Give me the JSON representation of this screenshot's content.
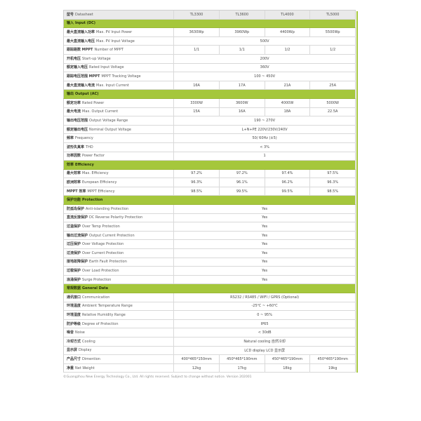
{
  "accent_color": "#a5c73c",
  "header": {
    "zh": "型号",
    "en": "Datasheet",
    "models": [
      "TL3300",
      "TL3600",
      "TL4000",
      "TL5000"
    ]
  },
  "sections": [
    {
      "zh": "输入",
      "en": "Input (DC)",
      "rows": [
        {
          "zh": "最大直流输入功率",
          "en": "Max. PV Input Power",
          "values": [
            "3630Wp",
            "3960Wp",
            "4400Wp",
            "5500Wp"
          ]
        },
        {
          "zh": "最大直流输入电压",
          "en": "Max. PV Input Voltage",
          "value": "500V"
        },
        {
          "zh": "跟踪路数 MPPT",
          "en": "Number of MPPT",
          "values": [
            "1/1",
            "1/1",
            "1/2",
            "1/2"
          ]
        },
        {
          "zh": "开机电压",
          "en": "Start-up Voltage",
          "value": "200V"
        },
        {
          "zh": "额定输入电压",
          "en": "Rated Input Voltage",
          "value": "360V"
        },
        {
          "zh": "跟踪电压范围 MPPT",
          "en": "MPPT Tracking Voltage",
          "value": "100 ~ 450V"
        },
        {
          "zh": "最大直流输入电流",
          "en": "Max. Input Current",
          "values": [
            "16A",
            "17A",
            "21A",
            "25A"
          ]
        }
      ]
    },
    {
      "zh": "输出",
      "en": "Output (AC)",
      "rows": [
        {
          "zh": "额定功率",
          "en": "Rated Power",
          "values": [
            "3300W",
            "3600W",
            "4000W",
            "5000W"
          ]
        },
        {
          "zh": "最大电流",
          "en": "Max. Output Current",
          "values": [
            "15A",
            "16A",
            "18A",
            "22.5A"
          ]
        },
        {
          "zh": "输出电压范围",
          "en": "Output Voltage Range",
          "value": "190 ~ 270V"
        },
        {
          "zh": "额定输出电压",
          "en": "Nominal Output Voltage",
          "value": "L+N+PE 220V/230V/240V"
        },
        {
          "zh": "频率",
          "en": "Frequency",
          "value": "50/ 60Hz (±5)"
        },
        {
          "zh": "波形失真率",
          "en": "THD",
          "value": "< 3%"
        },
        {
          "zh": "功率因数",
          "en": "Power Factor",
          "value": "1"
        }
      ]
    },
    {
      "zh": "效率",
      "en": "Efficiency",
      "rows": [
        {
          "zh": "最大效率",
          "en": "Max. Efficiency",
          "values": [
            "97.2%",
            "97.2%",
            "97.4%",
            "97.5%"
          ]
        },
        {
          "zh": "欧洲效率",
          "en": "European Efficiency",
          "values": [
            "96.3%",
            "96.1%",
            "96.2%",
            "96.3%"
          ]
        },
        {
          "zh": "MPPT 效率",
          "en": "MPPT Efficiency",
          "values": [
            "98.5%",
            "99.5%",
            "99.5%",
            "98.5%"
          ]
        }
      ]
    },
    {
      "zh": "保护功能",
      "en": "Protection",
      "rows": [
        {
          "zh": "防孤岛保护",
          "en": "Anti-islanding Protection",
          "value": "Yes"
        },
        {
          "zh": "直流反接保护",
          "en": "DC Reverse Polarity Protection",
          "value": "Yes"
        },
        {
          "zh": "过温保护",
          "en": "Over Temp Protection",
          "value": "Yes"
        },
        {
          "zh": "输出过流保护",
          "en": "Output Current Protection",
          "value": "Yes"
        },
        {
          "zh": "过压保护",
          "en": "Over Voltage Protection",
          "value": "Yes"
        },
        {
          "zh": "过流保护",
          "en": "Over Current Protection",
          "value": "Yes"
        },
        {
          "zh": "接地故障保护",
          "en": "Earth Fault Protection",
          "value": "Yes"
        },
        {
          "zh": "过载保护",
          "en": "Over Load Protection",
          "value": "Yes"
        },
        {
          "zh": "浪涌保护",
          "en": "Surge Protection",
          "value": "Yes"
        }
      ]
    },
    {
      "zh": "常规数据",
      "en": "General Data",
      "rows": [
        {
          "zh": "通讯接口",
          "en": "Communication",
          "value": "RS232 / RS485 / WIFI / GPRS (Optional)"
        },
        {
          "zh": "环境温度",
          "en": "Ambient Temperature Range",
          "value": "-25℃ ~ +60℃"
        },
        {
          "zh": "环境湿度",
          "en": "Relative Humidity Range",
          "value": "0 ~ 95%"
        },
        {
          "zh": "防护等级",
          "en": "Degree of Protection",
          "value": "IP65"
        },
        {
          "zh": "噪音",
          "en": "Noise",
          "value": "< 30dB"
        },
        {
          "zh": "冷却方式",
          "en": "Cooling",
          "value": "Natural cooling 自然冷却"
        },
        {
          "zh": "显示屏",
          "en": "Display",
          "value": "LCD display LCD 显示屏"
        },
        {
          "zh": "产品尺寸",
          "en": "Dimention",
          "values": [
            "400*465*150mm",
            "450*465*190mm",
            "450*465*190mm",
            "450*465*190mm"
          ]
        },
        {
          "zh": "净重",
          "en": "Net Weight",
          "values": [
            "12kg",
            "17kg",
            "18kg",
            "19kg"
          ]
        }
      ]
    }
  ],
  "footer": "©Guangzhou New Energy Technology Co., Ltd. All rights reserved. Subject to change without notice. Version 202001"
}
